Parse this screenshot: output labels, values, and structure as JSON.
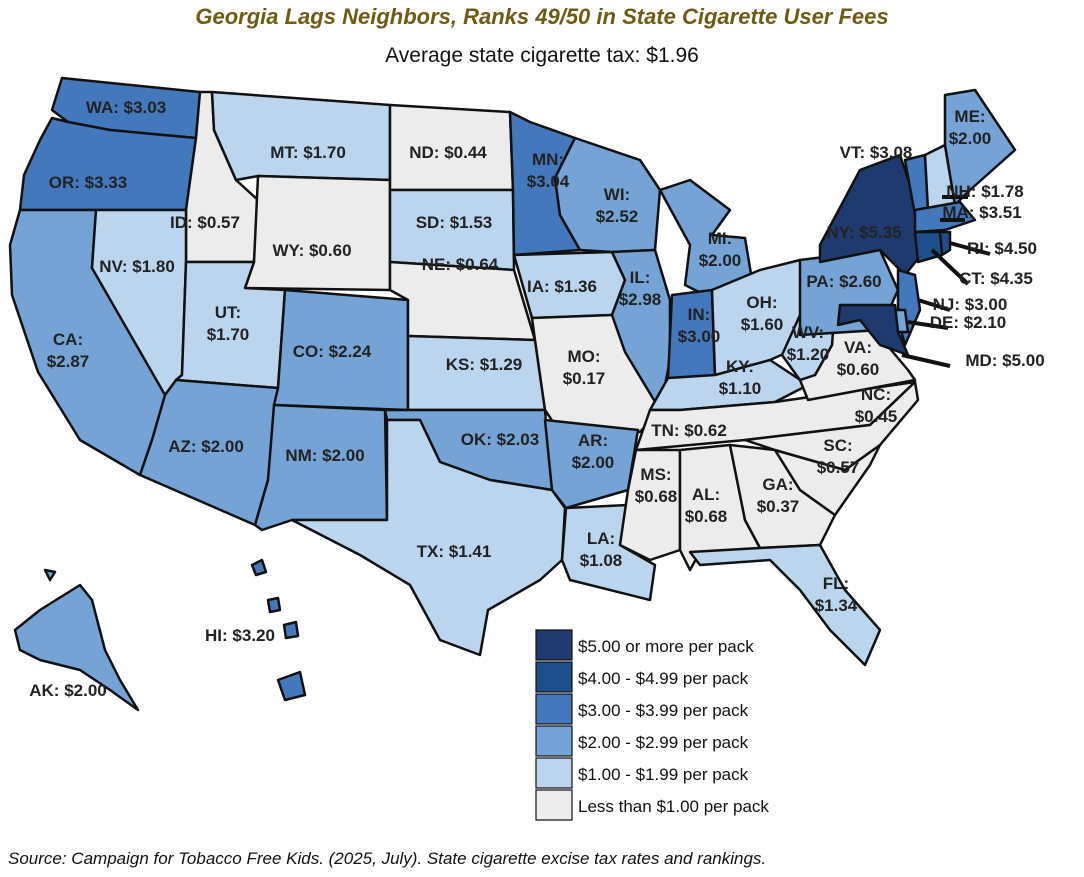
{
  "title": "Georgia Lags Neighbors, Ranks 49/50 in State Cigarette User Fees",
  "subtitle": "Average state cigarette tax: $1.96",
  "source": "Source: Campaign for Tobacco Free Kids. (2025, July). State cigarette excise tax rates and rankings.",
  "colors": {
    "tier5": "#1f3a6e",
    "tier4": "#1d4f8c",
    "tier3": "#4478bd",
    "tier2": "#75a3d6",
    "tier1": "#bcd5ee",
    "tier0": "#ececec",
    "border": "#111111"
  },
  "legend": [
    {
      "label": "$5.00 or more per pack",
      "tier": "tier5"
    },
    {
      "label": "$4.00 - $4.99 per pack",
      "tier": "tier4"
    },
    {
      "label": "$3.00 - $3.99 per pack",
      "tier": "tier3"
    },
    {
      "label": "$2.00 - $2.99 per pack",
      "tier": "tier2"
    },
    {
      "label": "$1.00 - $1.99 per pack",
      "tier": "tier1"
    },
    {
      "label": "Less than $1.00 per pack",
      "tier": "tier0"
    }
  ],
  "states": [
    {
      "id": "WA",
      "tier": "tier3",
      "label": "WA: $3.03"
    },
    {
      "id": "OR",
      "tier": "tier3",
      "label": "OR: $3.33"
    },
    {
      "id": "CA",
      "tier": "tier2",
      "label": [
        "CA:",
        "$2.87"
      ]
    },
    {
      "id": "ID",
      "tier": "tier0",
      "label": "ID: $0.57"
    },
    {
      "id": "NV",
      "tier": "tier1",
      "label": "NV: $1.80"
    },
    {
      "id": "MT",
      "tier": "tier1",
      "label": "MT: $1.70"
    },
    {
      "id": "WY",
      "tier": "tier0",
      "label": "WY: $0.60"
    },
    {
      "id": "UT",
      "tier": "tier1",
      "label": [
        "UT:",
        "$1.70"
      ]
    },
    {
      "id": "AZ",
      "tier": "tier2",
      "label": "AZ: $2.00"
    },
    {
      "id": "CO",
      "tier": "tier2",
      "label": "CO: $2.24"
    },
    {
      "id": "NM",
      "tier": "tier2",
      "label": "NM: $2.00"
    },
    {
      "id": "ND",
      "tier": "tier0",
      "label": "ND: $0.44"
    },
    {
      "id": "SD",
      "tier": "tier1",
      "label": "SD: $1.53"
    },
    {
      "id": "NE",
      "tier": "tier0",
      "label": "NE: $0.64"
    },
    {
      "id": "KS",
      "tier": "tier1",
      "label": "KS: $1.29"
    },
    {
      "id": "OK",
      "tier": "tier2",
      "label": "OK: $2.03"
    },
    {
      "id": "TX",
      "tier": "tier1",
      "label": "TX: $1.41"
    },
    {
      "id": "MN",
      "tier": "tier3",
      "label": [
        "MN:",
        "$3.04"
      ]
    },
    {
      "id": "IA",
      "tier": "tier1",
      "label": "IA: $1.36"
    },
    {
      "id": "MO",
      "tier": "tier0",
      "label": [
        "MO:",
        "$0.17"
      ]
    },
    {
      "id": "AR",
      "tier": "tier2",
      "label": [
        "AR:",
        "$2.00"
      ]
    },
    {
      "id": "LA",
      "tier": "tier1",
      "label": [
        "LA:",
        "$1.08"
      ]
    },
    {
      "id": "WI",
      "tier": "tier2",
      "label": [
        "WI:",
        "$2.52"
      ]
    },
    {
      "id": "IL",
      "tier": "tier2",
      "label": [
        "IL:",
        "$2.98"
      ]
    },
    {
      "id": "MI",
      "tier": "tier2",
      "label": [
        "MI:",
        "$2.00"
      ]
    },
    {
      "id": "IN",
      "tier": "tier3",
      "label": [
        "IN:",
        "$3.00"
      ]
    },
    {
      "id": "OH",
      "tier": "tier1",
      "label": [
        "OH:",
        "$1.60"
      ]
    },
    {
      "id": "KY",
      "tier": "tier1",
      "label": [
        "KY:",
        "$1.10"
      ]
    },
    {
      "id": "TN",
      "tier": "tier0",
      "label": "TN: $0.62"
    },
    {
      "id": "MS",
      "tier": "tier0",
      "label": [
        "MS:",
        "$0.68"
      ]
    },
    {
      "id": "AL",
      "tier": "tier0",
      "label": [
        "AL:",
        "$0.68"
      ]
    },
    {
      "id": "GA",
      "tier": "tier0",
      "label": [
        "GA:",
        "$0.37"
      ]
    },
    {
      "id": "FL",
      "tier": "tier1",
      "label": [
        "FL:",
        "$1.34"
      ]
    },
    {
      "id": "SC",
      "tier": "tier0",
      "label": [
        "SC:",
        "$0.57"
      ]
    },
    {
      "id": "NC",
      "tier": "tier0",
      "label": [
        "NC:",
        "$0.45"
      ]
    },
    {
      "id": "VA",
      "tier": "tier0",
      "label": [
        "VA:",
        "$0.60"
      ]
    },
    {
      "id": "WV",
      "tier": "tier1",
      "label": [
        "WV:",
        "$1.20"
      ]
    },
    {
      "id": "PA",
      "tier": "tier2",
      "label": "PA: $2.60"
    },
    {
      "id": "NY",
      "tier": "tier5",
      "label": "NY: $5.35"
    },
    {
      "id": "VT",
      "tier": "tier3",
      "label": "VT: $3.08"
    },
    {
      "id": "NH",
      "tier": "tier1",
      "label": "NH: $1.78"
    },
    {
      "id": "ME",
      "tier": "tier2",
      "label": [
        "ME:",
        "$2.00"
      ]
    },
    {
      "id": "MA",
      "tier": "tier3",
      "label": "MA: $3.51"
    },
    {
      "id": "RI",
      "tier": "tier4",
      "label": "RI: $4.50"
    },
    {
      "id": "CT",
      "tier": "tier4",
      "label": "CT: $4.35"
    },
    {
      "id": "NJ",
      "tier": "tier3",
      "label": "NJ: $3.00"
    },
    {
      "id": "DE",
      "tier": "tier2",
      "label": "DE: $2.10"
    },
    {
      "id": "MD",
      "tier": "tier5",
      "label": "MD: $5.00"
    },
    {
      "id": "AK",
      "tier": "tier2",
      "label": "AK: $2.00"
    },
    {
      "id": "HI",
      "tier": "tier3",
      "label": "HI: $3.20"
    }
  ]
}
